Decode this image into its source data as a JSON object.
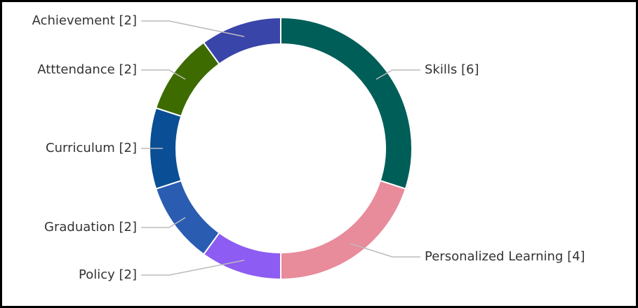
{
  "chart_data": {
    "type": "donut",
    "categories": [
      "Skills",
      "Personalized Learning",
      "Policy",
      "Graduation",
      "Curriculum",
      "Atttendance",
      "Achievement"
    ],
    "values": [
      6,
      4,
      2,
      2,
      2,
      2,
      2
    ],
    "value_labels": [
      "[6]",
      "[4]",
      "[2]",
      "[2]",
      "[2]",
      "[2]",
      "[2]"
    ],
    "colors": [
      "#005e59",
      "#e88b9b",
      "#8d5cf2",
      "#2a5cb2",
      "#0a4f95",
      "#3d6b00",
      "#3a45a9"
    ]
  }
}
